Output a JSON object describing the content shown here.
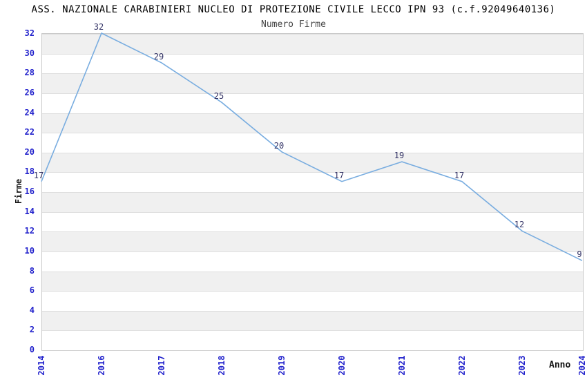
{
  "chart_data": {
    "type": "line",
    "title": "ASS. NAZIONALE CARABINIERI NUCLEO DI PROTEZIONE CIVILE LECCO IPN 93 (c.f.92049640136)",
    "subtitle": "Numero Firme",
    "categories": [
      "2014",
      "2016",
      "2017",
      "2018",
      "2019",
      "2020",
      "2021",
      "2022",
      "2023",
      "2024"
    ],
    "series": [
      {
        "name": "Numero Firme",
        "values": [
          17,
          32,
          29,
          25,
          20,
          17,
          19,
          17,
          12,
          9
        ]
      }
    ],
    "data_labels": [
      "17",
      "32",
      "29",
      "25",
      "20",
      "17",
      "19",
      "17",
      "12",
      "9"
    ],
    "xlabel": "Anno",
    "ylabel": "Firme",
    "ylim": [
      0,
      32
    ],
    "ytick_step": 2,
    "ytick_labels": [
      "0",
      "2",
      "4",
      "6",
      "8",
      "10",
      "12",
      "14",
      "16",
      "18",
      "20",
      "22",
      "24",
      "26",
      "28",
      "30",
      "32"
    ],
    "grid": "horizontal-alternating-bands",
    "legend_position": "none",
    "colors": {
      "line": "#79ade0",
      "tick_label": "#2222cc",
      "data_label": "#333366",
      "band_gray": "#f0f0f0",
      "band_white": "#ffffff",
      "grid_line": "#dedede",
      "axis_border": "#c9c9c9",
      "title": "#000000",
      "subtitle": "#444444"
    }
  }
}
